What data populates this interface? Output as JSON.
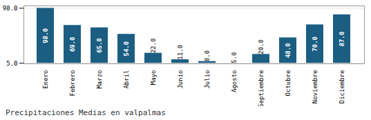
{
  "chart_data": {
    "type": "bar",
    "title": "Precipitaciones Medias en valpalmas",
    "categories": [
      "Enero",
      "Febrero",
      "Marzo",
      "Abril",
      "Mayo",
      "Junio",
      "Julio",
      "Agosto",
      "Septiembre",
      "Octubre",
      "Noviembre",
      "Diciembre"
    ],
    "values": [
      98.0,
      69.0,
      65.0,
      54.0,
      22.0,
      11.0,
      8.0,
      5.0,
      20.0,
      48.0,
      70.0,
      87.0
    ],
    "value_labels": [
      "98.0",
      "69.0",
      "65.0",
      "54.0",
      "22.0",
      "11.0",
      "8.0",
      "5.0",
      "20.0",
      "48.0",
      "70.0",
      "87.0"
    ],
    "color": "#1b5e82",
    "ylim": [
      4,
      102
    ],
    "yticks": [
      {
        "value": 5,
        "label": "5.0"
      },
      {
        "value": 98,
        "label": "98.0"
      }
    ],
    "grid": true,
    "data_labels": true
  }
}
